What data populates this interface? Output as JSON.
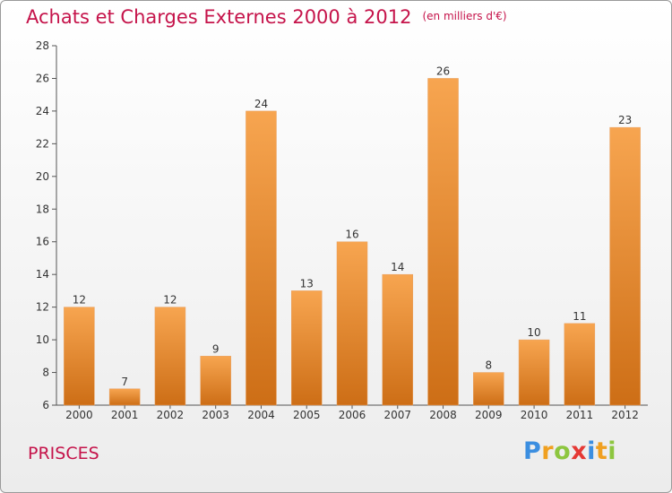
{
  "header": {
    "title": "Achats et Charges Externes 2000 à 2012",
    "unit": "(en milliers d'€)"
  },
  "footer": {
    "place": "PRISCES",
    "brand_letters": [
      "P",
      "r",
      "o",
      "x",
      "i",
      "t",
      "i"
    ]
  },
  "colors": {
    "title": "#c5134a",
    "bar_top": "#f7a550",
    "bar_bottom": "#cd6e16",
    "brand": [
      "#3b8ee0",
      "#f0a020",
      "#8dc63f",
      "#e53935",
      "#3b8ee0",
      "#f0a020",
      "#8dc63f"
    ]
  },
  "chart_data": {
    "type": "bar",
    "title": "Achats et Charges Externes 2000 à 2012",
    "subtitle": "(en milliers d'€)",
    "categories": [
      "2000",
      "2001",
      "2002",
      "2003",
      "2004",
      "2005",
      "2006",
      "2007",
      "2008",
      "2009",
      "2010",
      "2011",
      "2012"
    ],
    "values": [
      12,
      7,
      12,
      9,
      24,
      13,
      16,
      14,
      26,
      8,
      10,
      11,
      23
    ],
    "ylim": [
      6,
      28
    ],
    "yticks": [
      6,
      8,
      10,
      12,
      14,
      16,
      18,
      20,
      22,
      24,
      26,
      28
    ],
    "grid": false,
    "data_labels": true
  }
}
